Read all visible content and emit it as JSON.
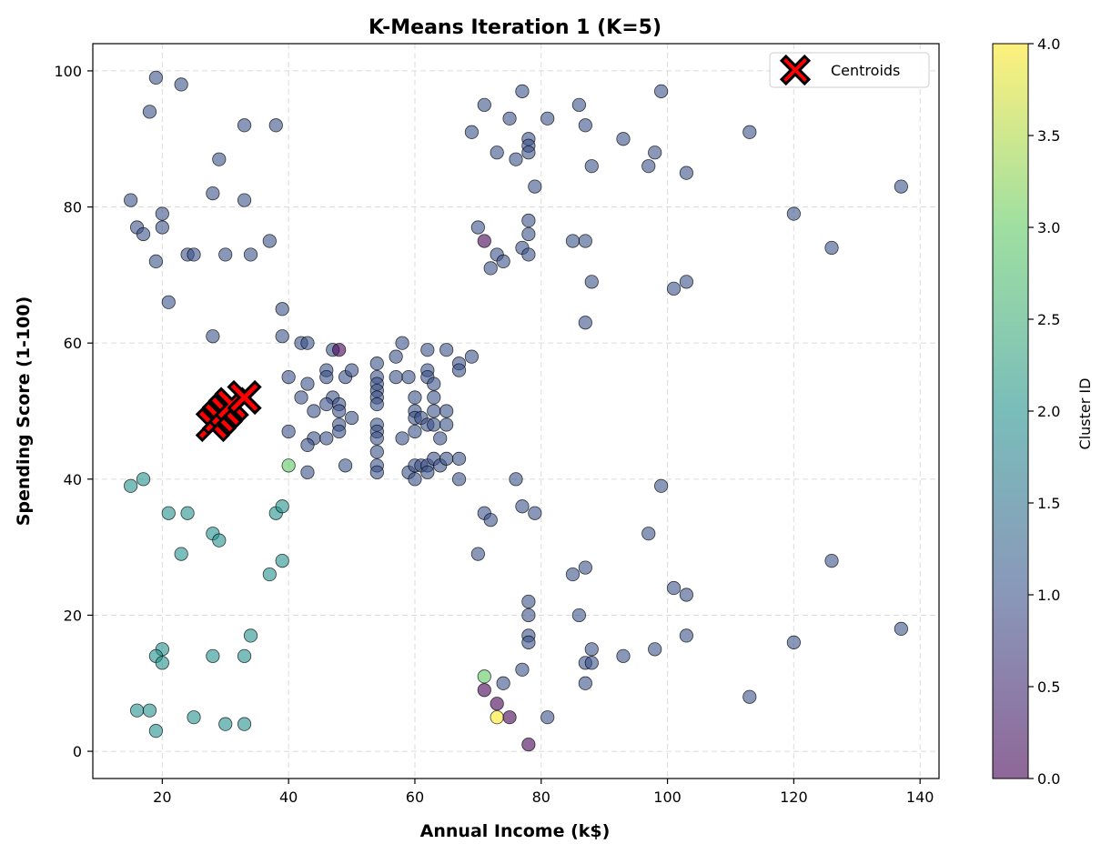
{
  "chart_data": {
    "type": "scatter",
    "title": "K-Means Iteration 1 (K=5)",
    "xlabel": "Annual Income (k$)",
    "ylabel": "Spending Score (1-100)",
    "xlim": [
      9,
      143
    ],
    "ylim": [
      -4,
      104
    ],
    "x_ticks": [
      20,
      40,
      60,
      80,
      100,
      120,
      140
    ],
    "y_ticks": [
      0,
      20,
      40,
      60,
      80,
      100
    ],
    "grid": true,
    "legend": {
      "placement": "top-right",
      "entries": [
        "Centroids"
      ]
    },
    "colorbar": {
      "label": "Cluster ID",
      "range": [
        0,
        4
      ],
      "ticks": [
        "0.0",
        "0.5",
        "1.0",
        "1.5",
        "2.0",
        "2.5",
        "3.0",
        "3.5",
        "4.0"
      ],
      "colormap": [
        "#440154",
        "#3b528b",
        "#21918c",
        "#5ec962",
        "#fde725"
      ]
    },
    "centroid_color": "#ff0000",
    "centroids": [
      {
        "x": 28,
        "y": 48
      },
      {
        "x": 29,
        "y": 49
      },
      {
        "x": 30,
        "y": 50
      },
      {
        "x": 31,
        "y": 51
      },
      {
        "x": 33,
        "y": 52
      }
    ],
    "points": [
      {
        "x": 19,
        "y": 99,
        "cluster": 1
      },
      {
        "x": 23,
        "y": 98,
        "cluster": 1
      },
      {
        "x": 18,
        "y": 94,
        "cluster": 1
      },
      {
        "x": 33,
        "y": 92,
        "cluster": 1
      },
      {
        "x": 38,
        "y": 92,
        "cluster": 1
      },
      {
        "x": 29,
        "y": 87,
        "cluster": 1
      },
      {
        "x": 28,
        "y": 82,
        "cluster": 1
      },
      {
        "x": 33,
        "y": 81,
        "cluster": 1
      },
      {
        "x": 15,
        "y": 81,
        "cluster": 1
      },
      {
        "x": 20,
        "y": 79,
        "cluster": 1
      },
      {
        "x": 16,
        "y": 77,
        "cluster": 1
      },
      {
        "x": 20,
        "y": 77,
        "cluster": 1
      },
      {
        "x": 17,
        "y": 76,
        "cluster": 1
      },
      {
        "x": 37,
        "y": 75,
        "cluster": 1
      },
      {
        "x": 24,
        "y": 73,
        "cluster": 1
      },
      {
        "x": 25,
        "y": 73,
        "cluster": 1
      },
      {
        "x": 30,
        "y": 73,
        "cluster": 1
      },
      {
        "x": 34,
        "y": 73,
        "cluster": 1
      },
      {
        "x": 19,
        "y": 72,
        "cluster": 1
      },
      {
        "x": 21,
        "y": 66,
        "cluster": 1
      },
      {
        "x": 28,
        "y": 61,
        "cluster": 1
      },
      {
        "x": 39,
        "y": 65,
        "cluster": 1
      },
      {
        "x": 39,
        "y": 61,
        "cluster": 1
      },
      {
        "x": 42,
        "y": 60,
        "cluster": 1
      },
      {
        "x": 43,
        "y": 60,
        "cluster": 1
      },
      {
        "x": 47,
        "y": 59,
        "cluster": 1
      },
      {
        "x": 48,
        "y": 59,
        "cluster": 0
      },
      {
        "x": 40,
        "y": 55,
        "cluster": 1
      },
      {
        "x": 43,
        "y": 54,
        "cluster": 1
      },
      {
        "x": 46,
        "y": 56,
        "cluster": 1
      },
      {
        "x": 46,
        "y": 55,
        "cluster": 1
      },
      {
        "x": 49,
        "y": 55,
        "cluster": 1
      },
      {
        "x": 50,
        "y": 56,
        "cluster": 1
      },
      {
        "x": 42,
        "y": 52,
        "cluster": 1
      },
      {
        "x": 47,
        "y": 52,
        "cluster": 1
      },
      {
        "x": 46,
        "y": 51,
        "cluster": 1
      },
      {
        "x": 48,
        "y": 51,
        "cluster": 1
      },
      {
        "x": 44,
        "y": 50,
        "cluster": 1
      },
      {
        "x": 48,
        "y": 50,
        "cluster": 1
      },
      {
        "x": 50,
        "y": 49,
        "cluster": 1
      },
      {
        "x": 48,
        "y": 48,
        "cluster": 1
      },
      {
        "x": 40,
        "y": 47,
        "cluster": 1
      },
      {
        "x": 48,
        "y": 47,
        "cluster": 1
      },
      {
        "x": 44,
        "y": 46,
        "cluster": 1
      },
      {
        "x": 46,
        "y": 46,
        "cluster": 1
      },
      {
        "x": 43,
        "y": 45,
        "cluster": 1
      },
      {
        "x": 40,
        "y": 42,
        "cluster": 3
      },
      {
        "x": 49,
        "y": 42,
        "cluster": 1
      },
      {
        "x": 43,
        "y": 41,
        "cluster": 1
      },
      {
        "x": 54,
        "y": 57,
        "cluster": 1
      },
      {
        "x": 54,
        "y": 55,
        "cluster": 1
      },
      {
        "x": 54,
        "y": 54,
        "cluster": 1
      },
      {
        "x": 54,
        "y": 53,
        "cluster": 1
      },
      {
        "x": 54,
        "y": 52,
        "cluster": 1
      },
      {
        "x": 54,
        "y": 51,
        "cluster": 1
      },
      {
        "x": 54,
        "y": 48,
        "cluster": 1
      },
      {
        "x": 54,
        "y": 47,
        "cluster": 1
      },
      {
        "x": 54,
        "y": 46,
        "cluster": 1
      },
      {
        "x": 54,
        "y": 44,
        "cluster": 1
      },
      {
        "x": 54,
        "y": 42,
        "cluster": 1
      },
      {
        "x": 54,
        "y": 41,
        "cluster": 1
      },
      {
        "x": 57,
        "y": 58,
        "cluster": 1
      },
      {
        "x": 58,
        "y": 60,
        "cluster": 1
      },
      {
        "x": 57,
        "y": 55,
        "cluster": 1
      },
      {
        "x": 59,
        "y": 55,
        "cluster": 1
      },
      {
        "x": 60,
        "y": 52,
        "cluster": 1
      },
      {
        "x": 60,
        "y": 50,
        "cluster": 1
      },
      {
        "x": 60,
        "y": 49,
        "cluster": 1
      },
      {
        "x": 61,
        "y": 49,
        "cluster": 1
      },
      {
        "x": 60,
        "y": 47,
        "cluster": 1
      },
      {
        "x": 58,
        "y": 46,
        "cluster": 1
      },
      {
        "x": 59,
        "y": 41,
        "cluster": 1
      },
      {
        "x": 60,
        "y": 42,
        "cluster": 1
      },
      {
        "x": 61,
        "y": 42,
        "cluster": 1
      },
      {
        "x": 62,
        "y": 42,
        "cluster": 1
      },
      {
        "x": 60,
        "y": 40,
        "cluster": 1
      },
      {
        "x": 62,
        "y": 41,
        "cluster": 1
      },
      {
        "x": 62,
        "y": 59,
        "cluster": 1
      },
      {
        "x": 62,
        "y": 56,
        "cluster": 1
      },
      {
        "x": 62,
        "y": 55,
        "cluster": 1
      },
      {
        "x": 63,
        "y": 54,
        "cluster": 1
      },
      {
        "x": 63,
        "y": 52,
        "cluster": 1
      },
      {
        "x": 63,
        "y": 50,
        "cluster": 1
      },
      {
        "x": 62,
        "y": 48,
        "cluster": 1
      },
      {
        "x": 63,
        "y": 48,
        "cluster": 1
      },
      {
        "x": 64,
        "y": 46,
        "cluster": 1
      },
      {
        "x": 63,
        "y": 43,
        "cluster": 1
      },
      {
        "x": 64,
        "y": 42,
        "cluster": 1
      },
      {
        "x": 65,
        "y": 43,
        "cluster": 1
      },
      {
        "x": 65,
        "y": 59,
        "cluster": 1
      },
      {
        "x": 65,
        "y": 50,
        "cluster": 1
      },
      {
        "x": 65,
        "y": 48,
        "cluster": 1
      },
      {
        "x": 67,
        "y": 57,
        "cluster": 1
      },
      {
        "x": 67,
        "y": 56,
        "cluster": 1
      },
      {
        "x": 69,
        "y": 58,
        "cluster": 1
      },
      {
        "x": 67,
        "y": 43,
        "cluster": 1
      },
      {
        "x": 67,
        "y": 40,
        "cluster": 1
      },
      {
        "x": 71,
        "y": 95,
        "cluster": 1
      },
      {
        "x": 77,
        "y": 97,
        "cluster": 1
      },
      {
        "x": 75,
        "y": 93,
        "cluster": 1
      },
      {
        "x": 81,
        "y": 93,
        "cluster": 1
      },
      {
        "x": 69,
        "y": 91,
        "cluster": 1
      },
      {
        "x": 78,
        "y": 90,
        "cluster": 1
      },
      {
        "x": 78,
        "y": 89,
        "cluster": 1
      },
      {
        "x": 78,
        "y": 88,
        "cluster": 1
      },
      {
        "x": 73,
        "y": 88,
        "cluster": 1
      },
      {
        "x": 76,
        "y": 87,
        "cluster": 1
      },
      {
        "x": 86,
        "y": 95,
        "cluster": 1
      },
      {
        "x": 87,
        "y": 92,
        "cluster": 1
      },
      {
        "x": 99,
        "y": 97,
        "cluster": 1
      },
      {
        "x": 93,
        "y": 90,
        "cluster": 1
      },
      {
        "x": 98,
        "y": 88,
        "cluster": 1
      },
      {
        "x": 88,
        "y": 86,
        "cluster": 1
      },
      {
        "x": 97,
        "y": 86,
        "cluster": 1
      },
      {
        "x": 103,
        "y": 85,
        "cluster": 1
      },
      {
        "x": 79,
        "y": 83,
        "cluster": 1
      },
      {
        "x": 113,
        "y": 91,
        "cluster": 1
      },
      {
        "x": 137,
        "y": 83,
        "cluster": 1
      },
      {
        "x": 120,
        "y": 79,
        "cluster": 1
      },
      {
        "x": 126,
        "y": 74,
        "cluster": 1
      },
      {
        "x": 70,
        "y": 77,
        "cluster": 1
      },
      {
        "x": 71,
        "y": 75,
        "cluster": 0
      },
      {
        "x": 78,
        "y": 78,
        "cluster": 1
      },
      {
        "x": 78,
        "y": 76,
        "cluster": 1
      },
      {
        "x": 77,
        "y": 74,
        "cluster": 1
      },
      {
        "x": 73,
        "y": 73,
        "cluster": 1
      },
      {
        "x": 78,
        "y": 73,
        "cluster": 1
      },
      {
        "x": 74,
        "y": 72,
        "cluster": 1
      },
      {
        "x": 72,
        "y": 71,
        "cluster": 1
      },
      {
        "x": 85,
        "y": 75,
        "cluster": 1
      },
      {
        "x": 87,
        "y": 75,
        "cluster": 1
      },
      {
        "x": 88,
        "y": 69,
        "cluster": 1
      },
      {
        "x": 101,
        "y": 68,
        "cluster": 1
      },
      {
        "x": 103,
        "y": 69,
        "cluster": 1
      },
      {
        "x": 87,
        "y": 63,
        "cluster": 1
      },
      {
        "x": 76,
        "y": 40,
        "cluster": 1
      },
      {
        "x": 99,
        "y": 39,
        "cluster": 1
      },
      {
        "x": 77,
        "y": 36,
        "cluster": 1
      },
      {
        "x": 71,
        "y": 35,
        "cluster": 1
      },
      {
        "x": 79,
        "y": 35,
        "cluster": 1
      },
      {
        "x": 72,
        "y": 34,
        "cluster": 1
      },
      {
        "x": 97,
        "y": 32,
        "cluster": 1
      },
      {
        "x": 70,
        "y": 29,
        "cluster": 1
      },
      {
        "x": 126,
        "y": 28,
        "cluster": 1
      },
      {
        "x": 87,
        "y": 27,
        "cluster": 1
      },
      {
        "x": 85,
        "y": 26,
        "cluster": 1
      },
      {
        "x": 101,
        "y": 24,
        "cluster": 1
      },
      {
        "x": 103,
        "y": 23,
        "cluster": 1
      },
      {
        "x": 78,
        "y": 22,
        "cluster": 1
      },
      {
        "x": 78,
        "y": 20,
        "cluster": 1
      },
      {
        "x": 86,
        "y": 20,
        "cluster": 1
      },
      {
        "x": 137,
        "y": 18,
        "cluster": 1
      },
      {
        "x": 78,
        "y": 17,
        "cluster": 1
      },
      {
        "x": 103,
        "y": 17,
        "cluster": 1
      },
      {
        "x": 78,
        "y": 16,
        "cluster": 1
      },
      {
        "x": 120,
        "y": 16,
        "cluster": 1
      },
      {
        "x": 88,
        "y": 15,
        "cluster": 1
      },
      {
        "x": 98,
        "y": 15,
        "cluster": 1
      },
      {
        "x": 93,
        "y": 14,
        "cluster": 1
      },
      {
        "x": 87,
        "y": 13,
        "cluster": 1
      },
      {
        "x": 88,
        "y": 13,
        "cluster": 1
      },
      {
        "x": 77,
        "y": 12,
        "cluster": 1
      },
      {
        "x": 74,
        "y": 10,
        "cluster": 1
      },
      {
        "x": 87,
        "y": 10,
        "cluster": 1
      },
      {
        "x": 113,
        "y": 8,
        "cluster": 1
      },
      {
        "x": 81,
        "y": 5,
        "cluster": 1
      },
      {
        "x": 71,
        "y": 11,
        "cluster": 3
      },
      {
        "x": 71,
        "y": 9,
        "cluster": 0
      },
      {
        "x": 73,
        "y": 7,
        "cluster": 0
      },
      {
        "x": 73,
        "y": 5,
        "cluster": 4
      },
      {
        "x": 75,
        "y": 5,
        "cluster": 0
      },
      {
        "x": 78,
        "y": 1,
        "cluster": 0
      },
      {
        "x": 15,
        "y": 39,
        "cluster": 2
      },
      {
        "x": 17,
        "y": 40,
        "cluster": 2
      },
      {
        "x": 21,
        "y": 35,
        "cluster": 2
      },
      {
        "x": 24,
        "y": 35,
        "cluster": 2
      },
      {
        "x": 28,
        "y": 32,
        "cluster": 2
      },
      {
        "x": 29,
        "y": 31,
        "cluster": 2
      },
      {
        "x": 23,
        "y": 29,
        "cluster": 2
      },
      {
        "x": 38,
        "y": 35,
        "cluster": 2
      },
      {
        "x": 39,
        "y": 36,
        "cluster": 2
      },
      {
        "x": 37,
        "y": 26,
        "cluster": 2
      },
      {
        "x": 39,
        "y": 28,
        "cluster": 2
      },
      {
        "x": 34,
        "y": 17,
        "cluster": 2
      },
      {
        "x": 20,
        "y": 15,
        "cluster": 2
      },
      {
        "x": 19,
        "y": 14,
        "cluster": 2
      },
      {
        "x": 20,
        "y": 13,
        "cluster": 2
      },
      {
        "x": 28,
        "y": 14,
        "cluster": 2
      },
      {
        "x": 33,
        "y": 14,
        "cluster": 2
      },
      {
        "x": 16,
        "y": 6,
        "cluster": 2
      },
      {
        "x": 18,
        "y": 6,
        "cluster": 2
      },
      {
        "x": 25,
        "y": 5,
        "cluster": 2
      },
      {
        "x": 30,
        "y": 4,
        "cluster": 2
      },
      {
        "x": 33,
        "y": 4,
        "cluster": 2
      },
      {
        "x": 19,
        "y": 3,
        "cluster": 2
      }
    ]
  }
}
